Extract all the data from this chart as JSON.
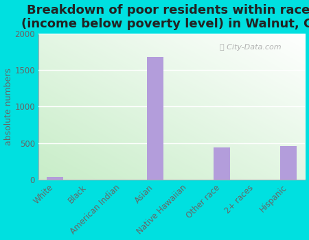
{
  "title": "Breakdown of poor residents within races\n(income below poverty level) in Walnut, CA",
  "categories": [
    "White",
    "Black",
    "American Indian",
    "Asian",
    "Native Hawaiian",
    "Other race",
    "2+ races",
    "Hispanic"
  ],
  "values": [
    35,
    3,
    3,
    1680,
    3,
    440,
    3,
    460
  ],
  "bar_color": "#b39ddb",
  "ylabel": "absolute numbers",
  "ylim": [
    0,
    2000
  ],
  "yticks": [
    0,
    500,
    1000,
    1500,
    2000
  ],
  "bg_color_topleft": "#c8edc8",
  "bg_color_topright": "#e8f8f0",
  "bg_color_bottomleft": "#d8f0d0",
  "bg_color_bottomright": "#ffffff",
  "outer_bg": "#00e0e0",
  "title_fontsize": 13,
  "ylabel_fontsize": 9,
  "tick_fontsize": 8.5,
  "watermark": "City-Data.com"
}
